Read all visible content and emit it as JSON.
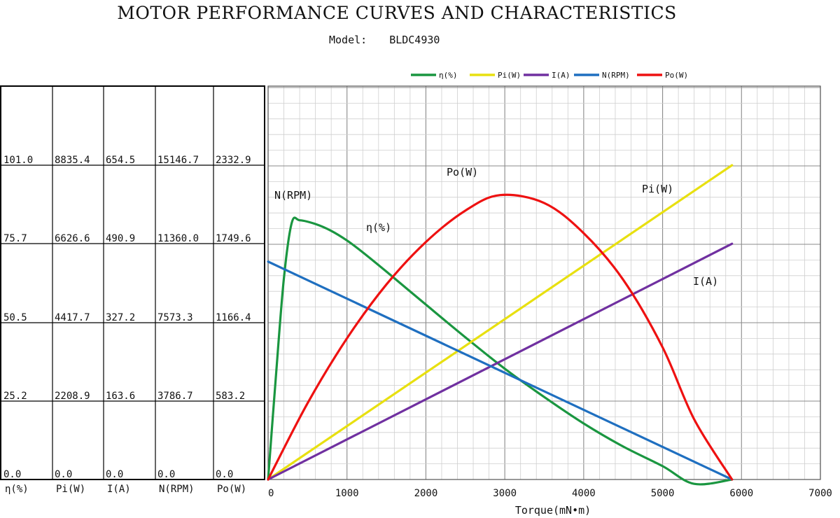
{
  "header": {
    "title": "MOTOR PERFORMANCE CURVES AND CHARACTERISTICS",
    "model_label": "Model:",
    "model_value": "BLDC4930"
  },
  "chart_data": {
    "type": "line",
    "xlabel": "Torque(mN•m)",
    "xlim": [
      0,
      7000
    ],
    "x_ticks": [
      "0",
      "1000",
      "2000",
      "3000",
      "4000",
      "5000",
      "6000",
      "7000"
    ],
    "grid": true,
    "legend_position": "top",
    "y_axes_table": {
      "columns": [
        "η(%)",
        "Pi(W)",
        "I(A)",
        "N(RPM)",
        "Po(W)"
      ],
      "rows": [
        [
          "101.0",
          "8835.4",
          "654.5",
          "15146.7",
          "2332.9"
        ],
        [
          "75.7",
          "6626.6",
          "490.9",
          "11360.0",
          "1749.6"
        ],
        [
          "50.5",
          "4417.7",
          "327.2",
          "7573.3",
          "1166.4"
        ],
        [
          "25.2",
          "2208.9",
          "163.6",
          "3786.7",
          "583.2"
        ],
        [
          "0.0",
          "0.0",
          "0.0",
          "0.0",
          "0.0"
        ]
      ]
    },
    "series": [
      {
        "name": "η(%)",
        "label": "η(%)",
        "color": "#1a9640",
        "y_max": 101.0,
        "points": [
          [
            0,
            0
          ],
          [
            100,
            33.5
          ],
          [
            200,
            64.6
          ],
          [
            300,
            82.5
          ],
          [
            400,
            83.3
          ],
          [
            600,
            82.1
          ],
          [
            800,
            79.9
          ],
          [
            1000,
            76.8
          ],
          [
            1200,
            73.0
          ],
          [
            1500,
            66.8
          ],
          [
            2000,
            56.2
          ],
          [
            2500,
            45.7
          ],
          [
            3000,
            35.6
          ],
          [
            3500,
            26.5
          ],
          [
            4000,
            18.0
          ],
          [
            4500,
            10.6
          ],
          [
            5000,
            4.3
          ],
          [
            5400,
            -1.4
          ],
          [
            5880,
            0
          ]
        ]
      },
      {
        "name": "Pi(W)",
        "label": "Pi(W)",
        "color": "#e8e010",
        "y_max": 8835.4,
        "points": [
          [
            0,
            0
          ],
          [
            5880,
            8835.4
          ]
        ]
      },
      {
        "name": "I(A)",
        "label": "I(A)",
        "color": "#7030a0",
        "y_max": 654.5,
        "points": [
          [
            0,
            0
          ],
          [
            5880,
            490.9
          ]
        ]
      },
      {
        "name": "N(RPM)",
        "label": "N(RPM)",
        "color": "#1f6fc0",
        "y_max": 15146.7,
        "points": [
          [
            0,
            10500
          ],
          [
            5880,
            0
          ]
        ]
      },
      {
        "name": "Po(W)",
        "label": "Po(W)",
        "color": "#ee1111",
        "y_max": 2332.9,
        "points": [
          [
            0,
            0
          ],
          [
            500,
            566
          ],
          [
            1000,
            1048
          ],
          [
            1500,
            1448
          ],
          [
            2000,
            1763
          ],
          [
            2500,
            1996
          ],
          [
            2940,
            2111
          ],
          [
            3500,
            2052
          ],
          [
            4000,
            1828
          ],
          [
            4500,
            1483
          ],
          [
            5000,
            981
          ],
          [
            5400,
            447
          ],
          [
            5880,
            0
          ]
        ]
      }
    ]
  }
}
